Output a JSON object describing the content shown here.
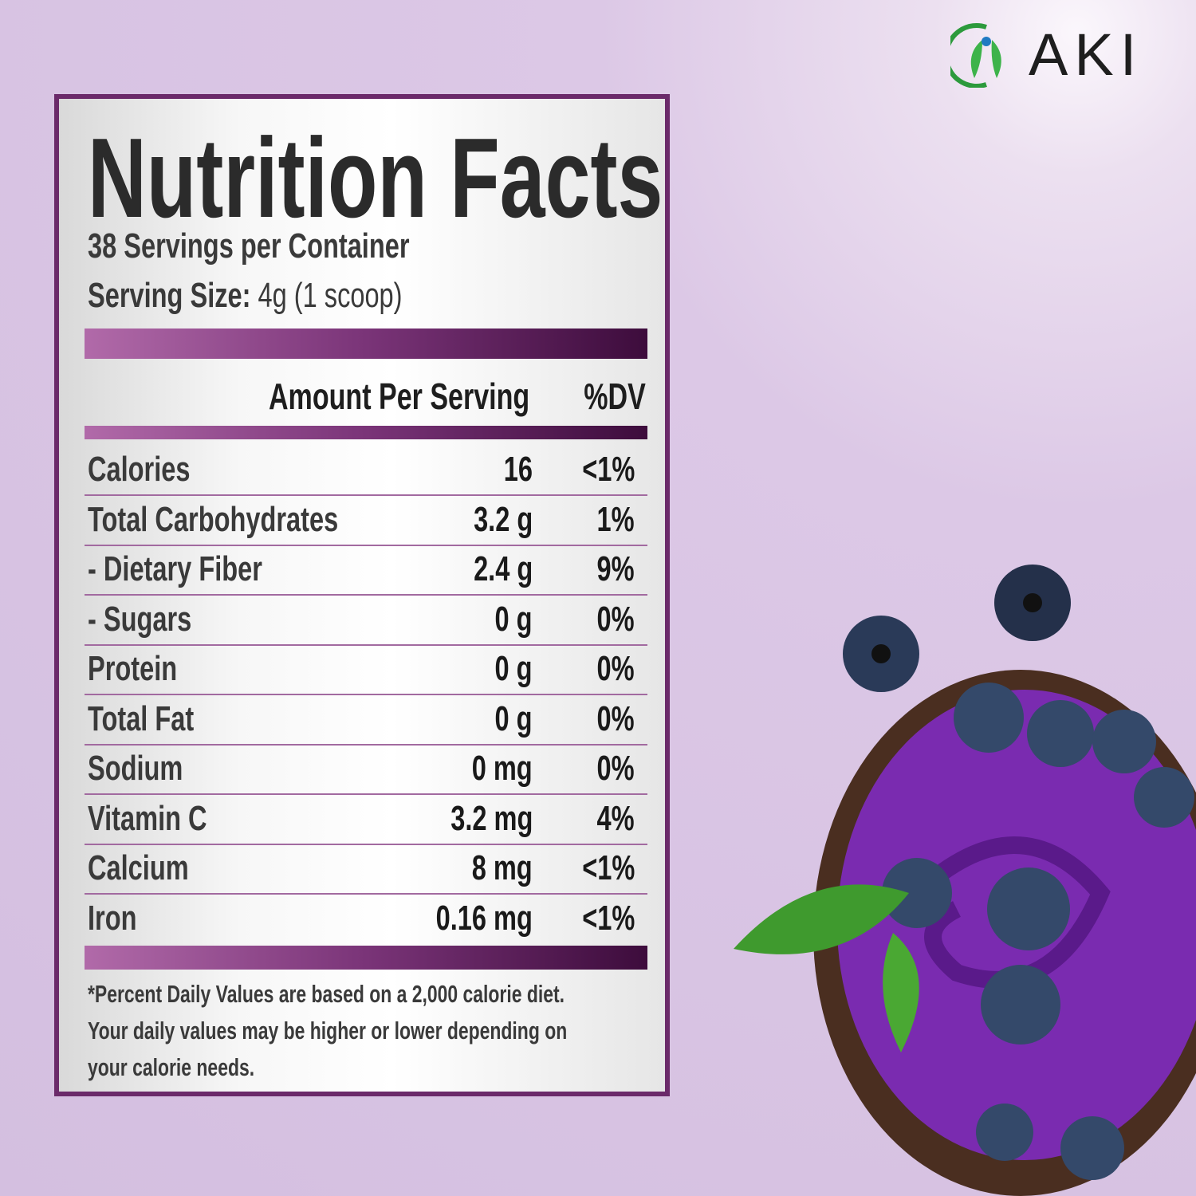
{
  "brand": "AKI",
  "label": {
    "title": "Nutrition Facts",
    "servings": "38 Servings per Container",
    "serving_size_label": "Serving Size:",
    "serving_size_value": "4g (1 scoop)",
    "header": {
      "amount": "Amount Per Serving",
      "dv": "%DV"
    },
    "rows": [
      {
        "name": "Calories",
        "amount": "16",
        "dv": "<1%"
      },
      {
        "name": "Total Carbohydrates",
        "amount": "3.2 g",
        "dv": "1%"
      },
      {
        "name": "- Dietary Fiber",
        "amount": "2.4 g",
        "dv": "9%"
      },
      {
        "name": "- Sugars",
        "amount": "0 g",
        "dv": "0%"
      },
      {
        "name": "Protein",
        "amount": "0 g",
        "dv": "0%"
      },
      {
        "name": "Total Fat",
        "amount": "0 g",
        "dv": "0%"
      },
      {
        "name": "Sodium",
        "amount": "0 mg",
        "dv": "0%"
      },
      {
        "name": "Vitamin C",
        "amount": "3.2 mg",
        "dv": "4%"
      },
      {
        "name": "Calcium",
        "amount": "8 mg",
        "dv": "<1%"
      },
      {
        "name": "Iron",
        "amount": "0.16 mg",
        "dv": "<1%"
      }
    ],
    "footnote": [
      "*Percent Daily Values are based on a 2,000 calorie diet.",
      "Your daily values may be higher or lower depending on",
      "your calorie needs."
    ]
  }
}
